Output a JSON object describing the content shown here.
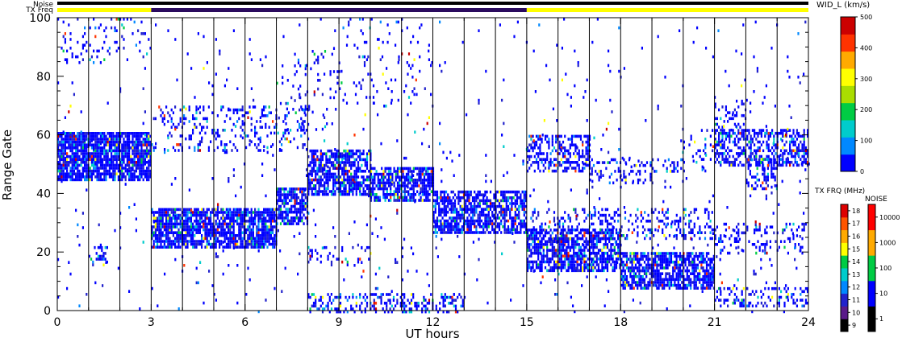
{
  "chart_data": {
    "type": "heatmap",
    "xlabel": "UT hours",
    "ylabel": "Range Gate",
    "xlim": [
      0,
      24
    ],
    "ylim": [
      0,
      100
    ],
    "xticks": [
      "0",
      "3",
      "6",
      "9",
      "12",
      "15",
      "18",
      "21",
      "24"
    ],
    "yticks": [
      "0",
      "20",
      "40",
      "60",
      "80",
      "100"
    ],
    "x_minor_step": 1,
    "y_minor_step": 5,
    "background": "#ffffff",
    "beam_scan_lines_hours": [
      1,
      2,
      3,
      4,
      5,
      6,
      7,
      8,
      9,
      10,
      11,
      12,
      13,
      14,
      15,
      16,
      17,
      18,
      19,
      20,
      21,
      22,
      23
    ],
    "top_strip": {
      "labels": [
        "Noise",
        "TX Freq"
      ],
      "noise_color": "#000000",
      "freq_segments": [
        {
          "from": 0,
          "to": 3,
          "color": "#ffff00"
        },
        {
          "from": 3,
          "to": 15,
          "color": "#2a0a5e"
        },
        {
          "from": 15,
          "to": 24,
          "color": "#ffff00"
        }
      ]
    },
    "scatter_bands": [
      {
        "x0": 0,
        "x1": 3,
        "g0": 45,
        "g1": 61,
        "density": 0.85
      },
      {
        "x0": 0,
        "x1": 3,
        "g0": 85,
        "g1": 100,
        "density": 0.1
      },
      {
        "x0": 1,
        "x1": 1.6,
        "g0": 16,
        "g1": 22,
        "density": 0.35
      },
      {
        "x0": 3,
        "x1": 7,
        "g0": 22,
        "g1": 35,
        "density": 0.8
      },
      {
        "x0": 7,
        "x1": 8,
        "g0": 30,
        "g1": 42,
        "density": 0.75
      },
      {
        "x0": 8,
        "x1": 10,
        "g0": 40,
        "g1": 55,
        "density": 0.7
      },
      {
        "x0": 10,
        "x1": 12,
        "g0": 38,
        "g1": 49,
        "density": 0.7
      },
      {
        "x0": 12,
        "x1": 15,
        "g0": 27,
        "g1": 41,
        "density": 0.7
      },
      {
        "x0": 3,
        "x1": 8,
        "g0": 55,
        "g1": 70,
        "density": 0.18
      },
      {
        "x0": 7,
        "x1": 9,
        "g0": 62,
        "g1": 90,
        "density": 0.08
      },
      {
        "x0": 9,
        "x1": 12,
        "g0": 70,
        "g1": 100,
        "density": 0.05
      },
      {
        "x0": 8,
        "x1": 13,
        "g0": 0,
        "g1": 6,
        "density": 0.35
      },
      {
        "x0": 8,
        "x1": 10,
        "g0": 16,
        "g1": 22,
        "density": 0.15
      },
      {
        "x0": 15,
        "x1": 17,
        "g0": 48,
        "g1": 60,
        "density": 0.45
      },
      {
        "x0": 17,
        "x1": 19,
        "g0": 44,
        "g1": 52,
        "density": 0.25
      },
      {
        "x0": 19,
        "x1": 20,
        "g0": 48,
        "g1": 52,
        "density": 0.25
      },
      {
        "x0": 20,
        "x1": 21,
        "g0": 48,
        "g1": 62,
        "density": 0.12
      },
      {
        "x0": 15,
        "x1": 18,
        "g0": 14,
        "g1": 28,
        "density": 0.7
      },
      {
        "x0": 18,
        "x1": 21,
        "g0": 8,
        "g1": 20,
        "density": 0.7
      },
      {
        "x0": 15,
        "x1": 21,
        "g0": 25,
        "g1": 35,
        "density": 0.25
      },
      {
        "x0": 21,
        "x1": 24,
        "g0": 50,
        "g1": 62,
        "density": 0.55
      },
      {
        "x0": 22,
        "x1": 23,
        "g0": 42,
        "g1": 52,
        "density": 0.35
      },
      {
        "x0": 21,
        "x1": 24,
        "g0": 20,
        "g1": 30,
        "density": 0.2
      },
      {
        "x0": 21,
        "x1": 24,
        "g0": 2,
        "g1": 8,
        "density": 0.25
      },
      {
        "x0": 21,
        "x1": 22,
        "g0": 62,
        "g1": 72,
        "density": 0.2
      },
      {
        "x0": 0,
        "x1": 24,
        "g0": 0,
        "g1": 100,
        "density": 0.015
      }
    ],
    "width_colorbar": {
      "label": "WID_L (km/s)",
      "ticks": [
        "0",
        "100",
        "200",
        "300",
        "400",
        "500"
      ],
      "colors": [
        "#0000ff",
        "#0088ff",
        "#00cccc",
        "#00cc44",
        "#aadd00",
        "#ffff00",
        "#ffaa00",
        "#ff3300",
        "#cc0000"
      ]
    },
    "freq_colorbar": {
      "label": "TX FRQ (MHz)",
      "ticks": [
        "9",
        "10",
        "11",
        "12",
        "13",
        "14",
        "15",
        "16",
        "17",
        "18"
      ],
      "colors": [
        "#000000",
        "#5a1a8a",
        "#2222cc",
        "#0088ff",
        "#00cccc",
        "#00cc44",
        "#ffff00",
        "#ffaa00",
        "#ff5500",
        "#dd0000"
      ]
    },
    "noise_colorbar": {
      "label": "NOISE",
      "ticks": [
        "1",
        "10",
        "100",
        "1000",
        "10000"
      ],
      "colors": [
        "#000000",
        "#0000ff",
        "#00cc44",
        "#ffaa00",
        "#ff0000"
      ]
    }
  }
}
